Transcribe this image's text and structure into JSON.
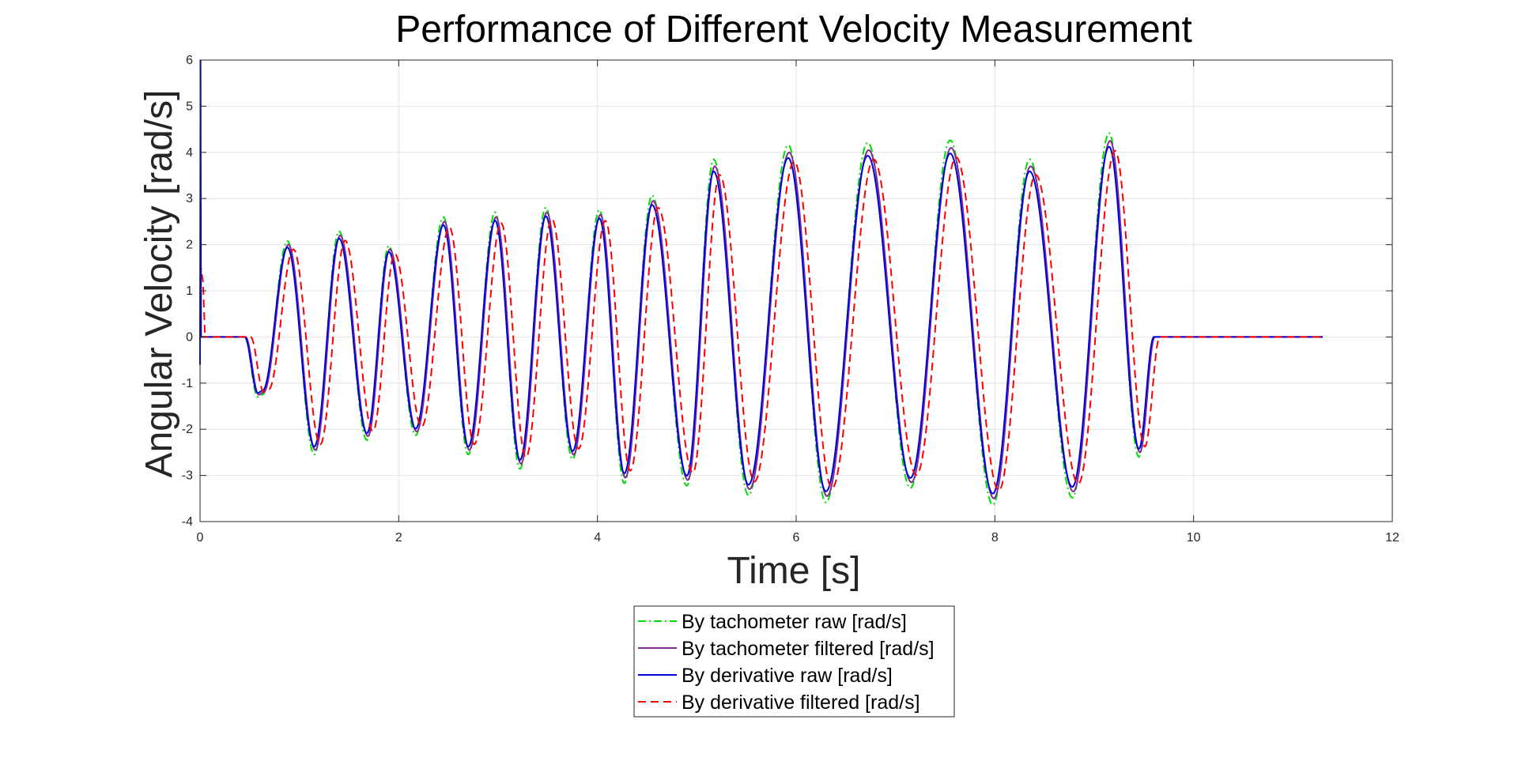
{
  "chart_data": {
    "type": "line",
    "title": "Performance of Different Velocity Measurement",
    "xlabel": "Time [s]",
    "ylabel": "Angular Velocity [rad/s]",
    "xlim": [
      0,
      12
    ],
    "ylim": [
      -4,
      6
    ],
    "xticks": [
      0,
      2,
      4,
      6,
      8,
      10,
      12
    ],
    "yticks": [
      -4,
      -3,
      -2,
      -1,
      0,
      1,
      2,
      3,
      4,
      5,
      6
    ],
    "grid": true,
    "legend_position": "bottom-center, below axes",
    "oscillation": {
      "start": 0.45,
      "end": 9.6,
      "x_end": 11.3,
      "peaks": [
        [
          0.88,
          2.0
        ],
        [
          1.4,
          2.2
        ],
        [
          1.9,
          1.9
        ],
        [
          2.45,
          2.5
        ],
        [
          2.97,
          2.6
        ],
        [
          3.48,
          2.7
        ],
        [
          4.02,
          2.65
        ],
        [
          4.55,
          2.95
        ],
        [
          5.17,
          3.7
        ],
        [
          5.92,
          4.0
        ],
        [
          6.72,
          4.05
        ],
        [
          7.55,
          4.1
        ],
        [
          8.35,
          3.7
        ],
        [
          9.15,
          4.25
        ]
      ],
      "troughs": [
        [
          0.58,
          -1.25
        ],
        [
          0.63,
          -1.2
        ],
        [
          1.15,
          -2.45
        ],
        [
          1.68,
          -2.15
        ],
        [
          2.17,
          -2.05
        ],
        [
          2.7,
          -2.45
        ],
        [
          3.22,
          -2.75
        ],
        [
          3.75,
          -2.55
        ],
        [
          4.27,
          -3.05
        ],
        [
          4.9,
          -3.1
        ],
        [
          5.52,
          -3.3
        ],
        [
          6.3,
          -3.45
        ],
        [
          7.15,
          -3.15
        ],
        [
          7.98,
          -3.5
        ],
        [
          8.78,
          -3.35
        ],
        [
          9.45,
          -2.5
        ]
      ]
    },
    "series": [
      {
        "name": "By tachometer raw [rad/s]",
        "color": "#00dd00",
        "style": "dash-dot",
        "amp_scale": 1.04,
        "time_shift": 0.0
      },
      {
        "name": "By tachometer filtered [rad/s]",
        "color": "#7e2f8e",
        "style": "solid",
        "amp_scale": 1.0,
        "time_shift": 0.01
      },
      {
        "name": "By derivative raw [rad/s]",
        "color": "#0000dd",
        "style": "solid",
        "amp_scale": 0.97,
        "time_shift": 0.0
      },
      {
        "name": "By derivative filtered [rad/s]",
        "color": "#ff0000",
        "style": "dashed",
        "amp_scale": 0.95,
        "time_shift": 0.06
      }
    ],
    "initial_spikes": {
      "derivative_raw": {
        "x": [
          0.0,
          0.005,
          0.01,
          0.02
        ],
        "y": [
          -0.6,
          6.0,
          0.0,
          0.0
        ]
      },
      "derivative_filtered": {
        "x": [
          0.0,
          0.01,
          0.03,
          0.05,
          0.08
        ],
        "y": [
          0.0,
          1.5,
          1.2,
          0.0,
          0.0
        ]
      }
    }
  }
}
